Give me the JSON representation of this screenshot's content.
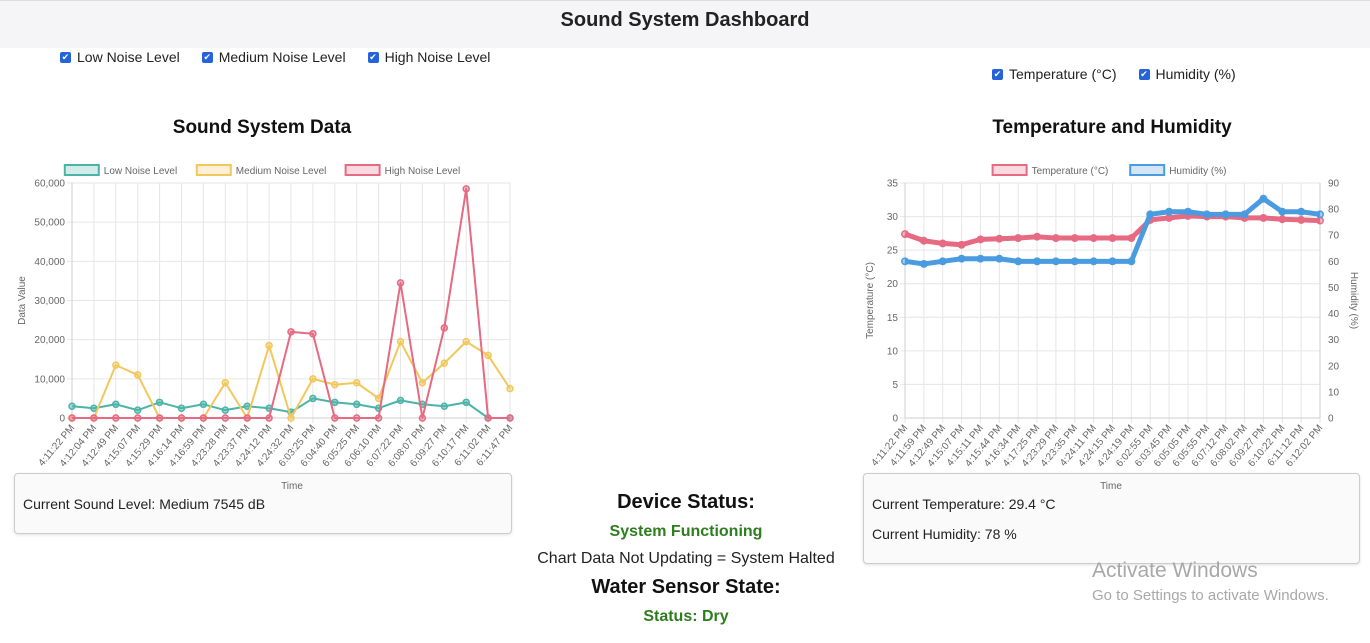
{
  "header": {
    "title": "Sound System Dashboard"
  },
  "sound_toggles": [
    {
      "label": "Low Noise Level",
      "checked": true
    },
    {
      "label": "Medium Noise Level",
      "checked": true
    },
    {
      "label": "High Noise Level",
      "checked": true
    }
  ],
  "env_toggles": [
    {
      "label": "Temperature (°C)",
      "checked": true
    },
    {
      "label": "Humidity (%)",
      "checked": true
    }
  ],
  "sound_info": {
    "current_sound": "Current Sound Level: Medium 7545 dB"
  },
  "env_info": {
    "current_temp": "Current Temperature: 29.4 °C",
    "current_humidity": "Current Humidity: 78 %"
  },
  "status": {
    "device_heading": "Device Status:",
    "device_state": "System Functioning",
    "note": "Chart Data Not Updating = System Halted",
    "water_heading": "Water Sensor State:",
    "water_state": "Status: Dry"
  },
  "windows_notice": {
    "line1": "Activate Windows",
    "line2": "Go to Settings to activate Windows."
  },
  "chart_data": [
    {
      "type": "line",
      "title": "Sound System Data",
      "xlabel": "Time",
      "ylabel": "Data Value",
      "ylim": [
        0,
        60000
      ],
      "yticks": [
        "0",
        "10,000",
        "20,000",
        "30,000",
        "40,000",
        "50,000",
        "60,000"
      ],
      "x": [
        "4:11:22 PM",
        "4:12:04 PM",
        "4:12:49 PM",
        "4:15:07 PM",
        "4:15:29 PM",
        "4:16:14 PM",
        "4:16:59 PM",
        "4:23:28 PM",
        "4:23:37 PM",
        "4:24:12 PM",
        "4:24:32 PM",
        "6:03:25 PM",
        "6:04:40 PM",
        "6:05:25 PM",
        "6:06:10 PM",
        "6:07:22 PM",
        "6:08:07 PM",
        "6:09:27 PM",
        "6:10:17 PM",
        "6:11:02 PM",
        "6:11:47 PM"
      ],
      "legend_position": "top",
      "grid": true,
      "series": [
        {
          "name": "Low Noise Level",
          "color": "#4bb3a8",
          "values": [
            3000,
            2500,
            3500,
            2000,
            4000,
            2500,
            3500,
            2000,
            3000,
            2500,
            1500,
            5000,
            4000,
            3500,
            2500,
            4500,
            3500,
            3000,
            4000,
            0,
            0
          ]
        },
        {
          "name": "Medium Noise Level",
          "color": "#f2c75c",
          "values": [
            0,
            0,
            13500,
            11000,
            0,
            0,
            0,
            9000,
            0,
            18500,
            0,
            10000,
            8500,
            9000,
            5000,
            19500,
            9000,
            14000,
            19500,
            16000,
            7500
          ]
        },
        {
          "name": "High Noise Level",
          "color": "#e56a82",
          "values": [
            0,
            0,
            0,
            0,
            0,
            0,
            0,
            0,
            0,
            0,
            22000,
            21500,
            0,
            0,
            0,
            34500,
            0,
            23000,
            58500,
            0,
            0
          ]
        }
      ]
    },
    {
      "type": "line",
      "title": "Temperature and Humidity",
      "xlabel": "Time",
      "ylabel": "Temperature (°C)",
      "y2label": "Humidity (%)",
      "ylim": [
        0,
        35
      ],
      "y2lim": [
        0,
        90
      ],
      "yticks": [
        "0",
        "5",
        "10",
        "15",
        "20",
        "25",
        "30",
        "35"
      ],
      "y2ticks": [
        "0",
        "10",
        "20",
        "30",
        "40",
        "50",
        "60",
        "70",
        "80",
        "90"
      ],
      "x": [
        "4:11:22 PM",
        "4:11:59 PM",
        "4:12:49 PM",
        "4:15:07 PM",
        "4:15:11 PM",
        "4:15:44 PM",
        "4:16:34 PM",
        "4:17:25 PM",
        "4:23:29 PM",
        "4:23:35 PM",
        "4:24:11 PM",
        "4:24:15 PM",
        "4:24:19 PM",
        "6:02:55 PM",
        "6:03:45 PM",
        "6:05:05 PM",
        "6:05:55 PM",
        "6:07:12 PM",
        "6:08:02 PM",
        "6:09:27 PM",
        "6:10:22 PM",
        "6:11:12 PM",
        "6:12:02 PM"
      ],
      "legend_position": "top",
      "grid": true,
      "series": [
        {
          "name": "Temperature (°C)",
          "color": "#e56a82",
          "axis": "left",
          "values": [
            27.4,
            26.4,
            26,
            25.8,
            26.6,
            26.7,
            26.8,
            27,
            26.8,
            26.8,
            26.8,
            26.8,
            26.8,
            29.5,
            29.8,
            30.1,
            30,
            30,
            29.8,
            29.8,
            29.6,
            29.5,
            29.4
          ]
        },
        {
          "name": "Humidity (%)",
          "color": "#4a9be0",
          "axis": "right",
          "values": [
            60,
            59,
            60,
            61,
            61,
            61,
            60,
            60,
            60,
            60,
            60,
            60,
            60,
            78,
            79,
            79,
            78,
            78,
            78,
            84,
            79,
            79,
            78
          ]
        }
      ]
    }
  ]
}
